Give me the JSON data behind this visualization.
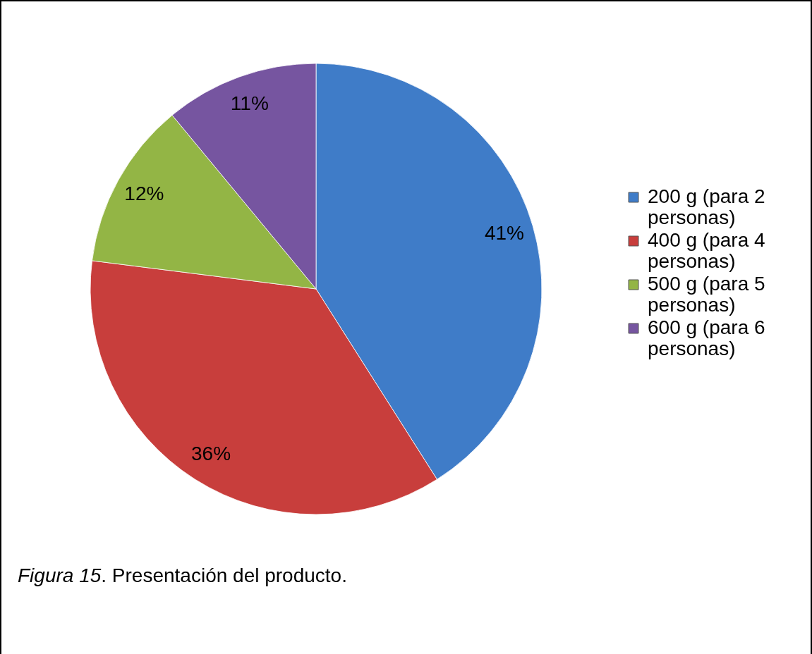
{
  "chart_data": {
    "type": "pie",
    "categories": [
      "200 g (para 2 personas)",
      "400 g (para 4 personas)",
      "500 g (para 5 personas)",
      "600 g (para 6 personas)"
    ],
    "values": [
      41,
      36,
      12,
      11
    ],
    "colors": [
      "#3f7cc8",
      "#c83e3c",
      "#93b545",
      "#7655a0"
    ],
    "value_labels": [
      "41%",
      "36%",
      "12%",
      "11%"
    ],
    "legend": "right",
    "annotations": [
      "Figura 15. Presentación del producto."
    ]
  }
}
